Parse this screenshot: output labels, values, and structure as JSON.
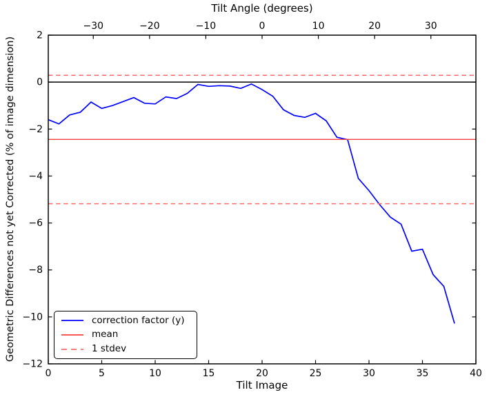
{
  "chart_data": {
    "type": "line",
    "title": "",
    "top_xlabel": "Tilt Angle (degrees)",
    "xlabel": "Tilt Image",
    "ylabel": "Geometric Differences not yet Corrected (% of image dimension)",
    "xlim": [
      0,
      40
    ],
    "ylim": [
      -12,
      2
    ],
    "top_xlim": [
      -38,
      38
    ],
    "x_ticks": [
      0,
      5,
      10,
      15,
      20,
      25,
      30,
      35,
      40
    ],
    "y_ticks": [
      2,
      0,
      -2,
      -4,
      -6,
      -8,
      -10,
      -12
    ],
    "top_x_ticks": [
      -30,
      -20,
      -10,
      0,
      10,
      20,
      30
    ],
    "grid": false,
    "zero_line": {
      "y": 0,
      "color": "#000000"
    },
    "legend_position": "lower left",
    "series": [
      {
        "name": "correction factor (y)",
        "kind": "line",
        "style": "solid",
        "color": "#0000ff",
        "x": [
          0,
          1,
          2,
          3,
          4,
          5,
          6,
          7,
          8,
          9,
          10,
          11,
          12,
          13,
          14,
          15,
          16,
          17,
          18,
          19,
          20,
          21,
          22,
          23,
          24,
          25,
          26,
          27,
          28,
          29,
          30,
          31,
          32,
          33,
          34,
          35,
          36,
          37,
          38
        ],
        "y": [
          -1.6,
          -1.78,
          -1.4,
          -1.28,
          -0.85,
          -1.12,
          -1.0,
          -0.83,
          -0.66,
          -0.9,
          -0.93,
          -0.63,
          -0.7,
          -0.48,
          -0.1,
          -0.18,
          -0.15,
          -0.17,
          -0.27,
          -0.08,
          -0.32,
          -0.6,
          -1.18,
          -1.42,
          -1.5,
          -1.33,
          -1.65,
          -2.35,
          -2.45,
          -4.1,
          -4.62,
          -5.22,
          -5.75,
          -6.05,
          -7.2,
          -7.12,
          -8.2,
          -8.7,
          -10.28
        ]
      },
      {
        "name": "mean",
        "kind": "hline",
        "style": "solid",
        "color": "#f94040",
        "y": [
          -2.44
        ]
      },
      {
        "name": "1 stdev",
        "kind": "hline",
        "style": "dashed",
        "color": "#fb6a6a",
        "y": [
          0.29,
          -5.18
        ]
      }
    ]
  }
}
